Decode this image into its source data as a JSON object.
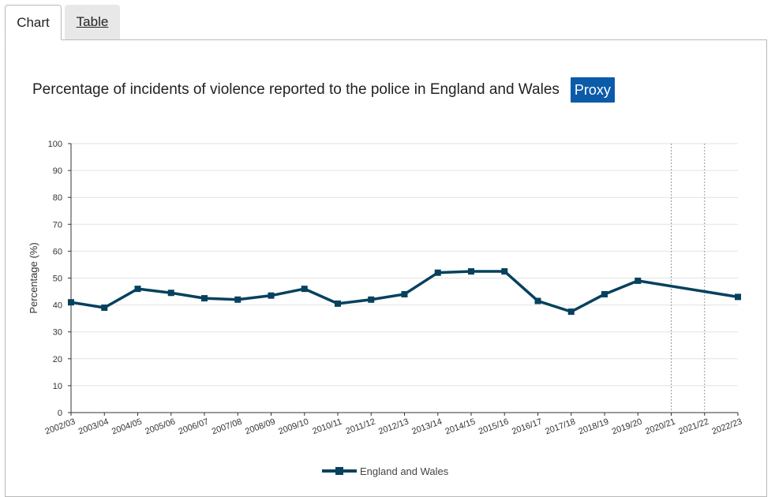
{
  "tabs": [
    {
      "label": "Chart",
      "active": true
    },
    {
      "label": "Table",
      "active": false
    }
  ],
  "header": {
    "title": "Percentage of incidents of violence reported to the police in England and Wales",
    "badge": "Proxy",
    "badge_color": "#0b5ba8"
  },
  "chart_data": {
    "type": "line",
    "title": "Percentage of incidents of violence reported to the police in England and Wales",
    "xlabel": "",
    "ylabel": "Percentage (%)",
    "ylim": [
      0,
      100
    ],
    "yticks": [
      0,
      10,
      20,
      30,
      40,
      50,
      60,
      70,
      80,
      90,
      100
    ],
    "grid": true,
    "legend_position": "bottom",
    "categories": [
      "2002/03",
      "2003/04",
      "2004/05",
      "2005/06",
      "2006/07",
      "2007/08",
      "2008/09",
      "2009/10",
      "2010/11",
      "2011/12",
      "2012/13",
      "2013/14",
      "2014/15",
      "2015/16",
      "2016/17",
      "2017/18",
      "2018/19",
      "2019/20",
      "2020/21",
      "2021/22",
      "2022/23"
    ],
    "series": [
      {
        "name": "England and Wales",
        "color": "#06415e",
        "values": [
          41,
          39,
          46,
          44.5,
          42.5,
          42,
          43.5,
          46,
          40.5,
          42,
          44,
          52,
          52.5,
          52.5,
          41.5,
          37.5,
          44,
          49,
          null,
          null,
          43
        ]
      }
    ],
    "annotations": [
      {
        "type": "dotted-vertical-line",
        "category": "2020/21"
      },
      {
        "type": "dotted-vertical-line",
        "category": "2021/22"
      }
    ]
  }
}
